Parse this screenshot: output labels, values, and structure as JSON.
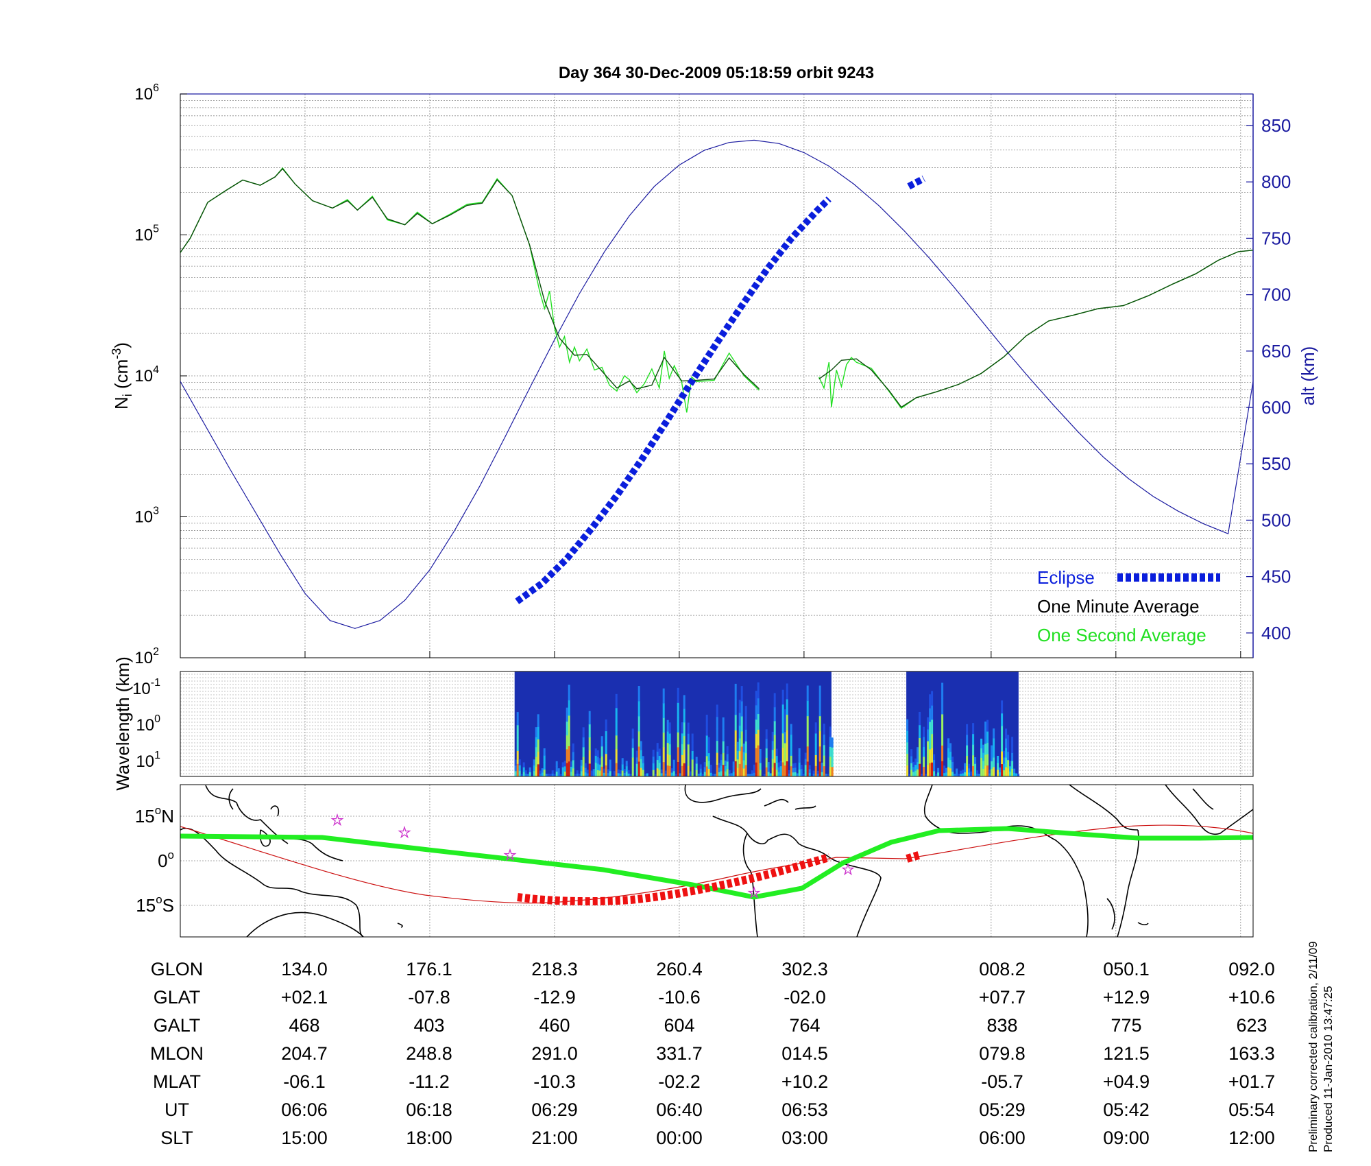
{
  "title": "Day 364  30-Dec-2009 05:18:59   orbit 9243",
  "footnote": [
    "Preliminary corrected calibration, 2/11/09",
    "Produced 11-Jan-2010 13:47:25"
  ],
  "colors": {
    "eclipse": "#0a1edc",
    "minute": "#0b4d0b",
    "second": "#22e022",
    "alt": "#1a1aa0",
    "track": "#22ee22",
    "orbit_red": "#cc1010",
    "map_eclipse": "#ee1111",
    "star": "#cc33cc"
  },
  "chart_data": [
    {
      "type": "line",
      "ylabel": "N",
      "ylabel_sub": "i",
      "ylabel_unit": "(cm",
      "ylabel_exp": "-3",
      "ylabel_close": ")",
      "y_scale": "log",
      "ylim": [
        100,
        1000000
      ],
      "y_ticks": [
        {
          "base": "10",
          "exp": "2"
        },
        {
          "base": "10",
          "exp": "3"
        },
        {
          "base": "10",
          "exp": "4"
        },
        {
          "base": "10",
          "exp": "5"
        },
        {
          "base": "10",
          "exp": "6"
        }
      ],
      "y2label": "alt (km)",
      "y2lim": [
        378,
        878
      ],
      "y2_ticks": [
        "400",
        "450",
        "500",
        "550",
        "600",
        "650",
        "700",
        "750",
        "800",
        "850"
      ],
      "grid": true,
      "legend": {
        "position": "bottom-right",
        "entries": [
          "Eclipse",
          "One Minute Average",
          "One Second Average"
        ]
      },
      "series": [
        {
          "name": "One Minute Average",
          "segments": [
            [
              [
                0,
                75000
              ],
              [
                0.4,
                95000
              ],
              [
                1.1,
                170000
              ],
              [
                1.8,
                205000
              ],
              [
                2.5,
                245000
              ],
              [
                3.2,
                225000
              ],
              [
                3.8,
                258000
              ],
              [
                4.1,
                295000
              ],
              [
                4.6,
                230000
              ],
              [
                5.3,
                175000
              ],
              [
                6.1,
                155000
              ],
              [
                6.7,
                175000
              ],
              [
                7.1,
                150000
              ],
              [
                7.7,
                185000
              ],
              [
                8.3,
                130000
              ],
              [
                9.0,
                118000
              ],
              [
                9.5,
                142000
              ],
              [
                10.1,
                120000
              ],
              [
                10.8,
                138000
              ],
              [
                11.5,
                162000
              ],
              [
                12.1,
                168000
              ],
              [
                12.7,
                246000
              ],
              [
                13.3,
                190000
              ],
              [
                14.0,
                85000
              ],
              [
                14.6,
                34000
              ],
              [
                15.2,
                18500
              ],
              [
                15.8,
                14000
              ],
              [
                16.3,
                14200
              ],
              [
                16.9,
                10800
              ],
              [
                17.5,
                8200
              ],
              [
                18.0,
                9200
              ],
              [
                18.3,
                8100
              ],
              [
                18.9,
                8600
              ],
              [
                19.4,
                13500
              ],
              [
                20.1,
                9200
              ],
              [
                20.7,
                9300
              ],
              [
                21.4,
                9500
              ],
              [
                22.0,
                13400
              ],
              [
                22.6,
                10200
              ],
              [
                23.2,
                8100
              ]
            ],
            [
              [
                25.6,
                9500
              ],
              [
                26.1,
                11000
              ],
              [
                26.5,
                12900
              ],
              [
                27.1,
                13200
              ],
              [
                27.7,
                11000
              ],
              [
                28.4,
                7900
              ],
              [
                28.9,
                6000
              ],
              [
                29.5,
                7000
              ],
              [
                30.3,
                7700
              ],
              [
                31.2,
                8700
              ],
              [
                32.1,
                10400
              ],
              [
                33.0,
                13600
              ],
              [
                33.9,
                19200
              ],
              [
                34.8,
                24500
              ],
              [
                35.8,
                27000
              ],
              [
                36.8,
                30000
              ],
              [
                37.8,
                31500
              ],
              [
                38.8,
                37000
              ],
              [
                39.8,
                45000
              ],
              [
                40.7,
                53000
              ],
              [
                41.6,
                66000
              ],
              [
                42.4,
                76000
              ],
              [
                43.0,
                78000
              ]
            ]
          ]
        },
        {
          "name": "One Second Average",
          "segments": [
            [
              [
                0,
                75000
              ],
              [
                0.4,
                95000
              ],
              [
                1.1,
                170000
              ],
              [
                1.8,
                205000
              ],
              [
                2.5,
                245000
              ],
              [
                3.2,
                225000
              ],
              [
                3.8,
                258000
              ],
              [
                4.1,
                298000
              ],
              [
                4.6,
                230000
              ],
              [
                5.3,
                175000
              ],
              [
                6.1,
                155000
              ],
              [
                6.7,
                178000
              ],
              [
                7.1,
                150000
              ],
              [
                7.7,
                188000
              ],
              [
                8.3,
                128000
              ],
              [
                9.0,
                118000
              ],
              [
                9.5,
                145000
              ],
              [
                10.1,
                120000
              ],
              [
                10.8,
                140000
              ],
              [
                11.5,
                165000
              ],
              [
                12.1,
                170000
              ],
              [
                12.7,
                250000
              ],
              [
                13.3,
                190000
              ],
              [
                14.0,
                85000
              ],
              [
                14.4,
                40000
              ],
              [
                14.6,
                30000
              ],
              [
                14.8,
                40000
              ],
              [
                15.0,
                22000
              ],
              [
                15.2,
                16000
              ],
              [
                15.4,
                19000
              ],
              [
                15.6,
                12500
              ],
              [
                15.8,
                16000
              ],
              [
                16.0,
                12800
              ],
              [
                16.3,
                15500
              ],
              [
                16.6,
                11000
              ],
              [
                16.9,
                11500
              ],
              [
                17.2,
                8600
              ],
              [
                17.5,
                7800
              ],
              [
                17.8,
                10000
              ],
              [
                18.0,
                9400
              ],
              [
                18.3,
                7600
              ],
              [
                18.6,
                8800
              ],
              [
                18.9,
                11200
              ],
              [
                19.2,
                8200
              ],
              [
                19.4,
                15000
              ],
              [
                19.6,
                9600
              ],
              [
                19.8,
                11800
              ],
              [
                20.1,
                9000
              ],
              [
                20.3,
                5500
              ],
              [
                20.5,
                9800
              ],
              [
                20.7,
                9100
              ],
              [
                21.4,
                9300
              ],
              [
                22.0,
                14500
              ],
              [
                22.6,
                10000
              ],
              [
                23.2,
                7900
              ]
            ],
            [
              [
                25.6,
                9800
              ],
              [
                25.8,
                8200
              ],
              [
                26.0,
                12500
              ],
              [
                26.1,
                6000
              ],
              [
                26.3,
                11000
              ],
              [
                26.5,
                8400
              ],
              [
                26.7,
                12000
              ],
              [
                26.9,
                13500
              ],
              [
                27.1,
                12500
              ],
              [
                27.7,
                11300
              ],
              [
                28.4,
                7800
              ],
              [
                28.9,
                5900
              ],
              [
                29.5,
                7000
              ],
              [
                30.3,
                7700
              ],
              [
                31.2,
                8700
              ],
              [
                32.1,
                10400
              ],
              [
                33.0,
                13600
              ],
              [
                33.9,
                19200
              ],
              [
                34.8,
                24500
              ],
              [
                35.8,
                27000
              ],
              [
                36.8,
                30000
              ],
              [
                37.8,
                31500
              ],
              [
                38.8,
                37000
              ],
              [
                39.8,
                45000
              ],
              [
                40.7,
                53000
              ],
              [
                41.6,
                66000
              ],
              [
                42.4,
                76000
              ],
              [
                43.0,
                78000
              ]
            ]
          ]
        },
        {
          "name": "Eclipse",
          "segments": [
            [
              [
                13.5,
                428
              ],
              [
                14.5,
                444
              ],
              [
                15.5,
                466
              ],
              [
                16.5,
                493
              ],
              [
                17.5,
                522
              ],
              [
                18.5,
                554
              ],
              [
                19.5,
                588
              ],
              [
                20.5,
                623
              ],
              [
                21.5,
                657
              ],
              [
                22.5,
                690
              ],
              [
                23.5,
                722
              ],
              [
                24.5,
                750
              ],
              [
                25.5,
                774
              ],
              [
                26.0,
                785
              ]
            ]
          ]
        },
        {
          "name": "Eclipse2",
          "segments": [
            [
              [
                29.2,
                796
              ],
              [
                29.8,
                803
              ]
            ]
          ]
        }
      ],
      "altitude": [
        [
          0,
          623
        ],
        [
          2,
          545
        ],
        [
          4,
          470
        ],
        [
          5,
          435
        ],
        [
          6,
          411
        ],
        [
          7,
          404
        ],
        [
          8,
          411
        ],
        [
          9,
          429
        ],
        [
          10,
          456
        ],
        [
          11,
          491
        ],
        [
          12,
          530
        ],
        [
          13,
          573
        ],
        [
          14,
          617
        ],
        [
          15,
          660
        ],
        [
          16,
          701
        ],
        [
          17,
          738
        ],
        [
          18,
          770
        ],
        [
          19,
          796
        ],
        [
          20,
          815
        ],
        [
          21,
          828
        ],
        [
          22,
          835
        ],
        [
          23,
          837
        ],
        [
          24,
          834
        ],
        [
          25,
          826
        ],
        [
          26,
          814
        ],
        [
          27,
          798
        ],
        [
          28,
          779
        ],
        [
          29,
          757
        ],
        [
          30,
          733
        ],
        [
          31,
          707
        ],
        [
          32,
          680
        ],
        [
          33,
          653
        ],
        [
          34,
          627
        ],
        [
          35,
          602
        ],
        [
          36,
          578
        ],
        [
          37,
          556
        ],
        [
          38,
          537
        ],
        [
          39,
          521
        ],
        [
          40,
          508
        ],
        [
          41,
          497
        ],
        [
          42,
          488
        ],
        [
          43,
          623
        ]
      ]
    },
    {
      "type": "heatmap",
      "ylabel": "Wavelength (km)",
      "y_ticks": [
        {
          "base": "10",
          "exp": "-1"
        },
        {
          "base": "10",
          "exp": "0"
        },
        {
          "base": "10",
          "exp": "1"
        }
      ],
      "segments": [
        [
          13.4,
          26.1
        ],
        [
          29.1,
          33.6
        ]
      ]
    },
    {
      "type": "map",
      "y_ticks": [
        {
          "value": "15",
          "deg": "o",
          "hemi": "N"
        },
        {
          "value": "0",
          "deg": "o",
          "hemi": ""
        },
        {
          "value": "15",
          "deg": "o",
          "hemi": "S"
        }
      ]
    }
  ],
  "table": {
    "rows": [
      {
        "label": "GLON",
        "values": [
          "134.0",
          "176.1",
          "218.3",
          "260.4",
          "302.3",
          "008.2",
          "050.1",
          "092.0"
        ]
      },
      {
        "label": "GLAT",
        "values": [
          "+02.1",
          "-07.8",
          "-12.9",
          "-10.6",
          "-02.0",
          "+07.7",
          "+12.9",
          "+10.6"
        ]
      },
      {
        "label": "GALT",
        "values": [
          "468",
          "403",
          "460",
          "604",
          "764",
          "838",
          "775",
          "623"
        ]
      },
      {
        "label": "MLON",
        "values": [
          "204.7",
          "248.8",
          "291.0",
          "331.7",
          "014.5",
          "079.8",
          "121.5",
          "163.3"
        ]
      },
      {
        "label": "MLAT",
        "values": [
          "-06.1",
          "-11.2",
          "-10.3",
          "-02.2",
          "+10.2",
          "-05.7",
          "+04.9",
          "+01.7"
        ]
      },
      {
        "label": "UT",
        "values": [
          "06:06",
          "06:18",
          "06:29",
          "06:40",
          "06:53",
          "05:29",
          "05:42",
          "05:54"
        ]
      },
      {
        "label": "SLT",
        "values": [
          "15:00",
          "18:00",
          "21:00",
          "00:00",
          "03:00",
          "06:00",
          "09:00",
          "12:00"
        ]
      }
    ]
  }
}
